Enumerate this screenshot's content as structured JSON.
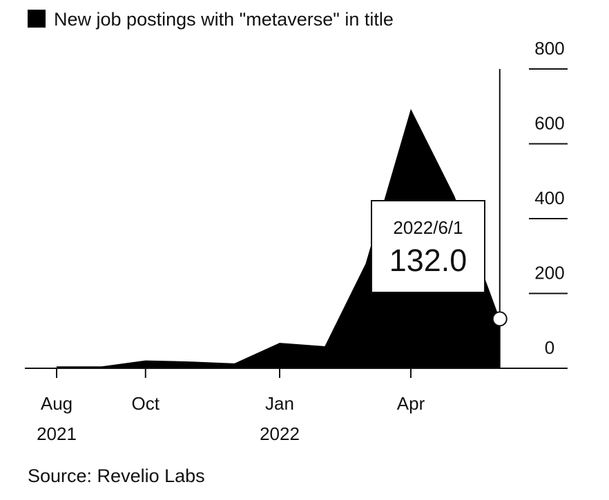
{
  "chart_data": {
    "type": "area",
    "series": [
      {
        "name": "New job postings with \"metaverse\" in title",
        "color": "#000000",
        "points": [
          {
            "x": "2021-08-01",
            "y": 5
          },
          {
            "x": "2021-09-01",
            "y": 5
          },
          {
            "x": "2021-10-01",
            "y": 21
          },
          {
            "x": "2021-11-01",
            "y": 18
          },
          {
            "x": "2021-12-01",
            "y": 13
          },
          {
            "x": "2022-01-01",
            "y": 68
          },
          {
            "x": "2022-02-01",
            "y": 59
          },
          {
            "x": "2022-03-01",
            "y": 280
          },
          {
            "x": "2022-04-01",
            "y": 693
          },
          {
            "x": "2022-05-01",
            "y": 460
          },
          {
            "x": "2022-06-01",
            "y": 132
          }
        ]
      }
    ],
    "ylim": [
      0,
      800
    ],
    "yticks": [
      0,
      200,
      400,
      600,
      800
    ],
    "y_axis_position": "right",
    "xticks": [
      {
        "x": "2021-08-01",
        "label": "Aug",
        "sublabel": "2021"
      },
      {
        "x": "2021-10-01",
        "label": "Oct",
        "sublabel": ""
      },
      {
        "x": "2022-01-01",
        "label": "Jan",
        "sublabel": "2022"
      },
      {
        "x": "2022-04-01",
        "label": "Apr",
        "sublabel": ""
      }
    ],
    "legend": {
      "label": "New job postings with \"metaverse\" in title",
      "placement": "top-left"
    },
    "tooltip": {
      "date": "2022/6/1",
      "value": "132.0",
      "x": "2022-06-01",
      "y": 132
    },
    "source": "Source: Revelio Labs",
    "colors": {
      "area": "#000000",
      "text": "#111111",
      "marker_fill": "#ffffff"
    }
  }
}
